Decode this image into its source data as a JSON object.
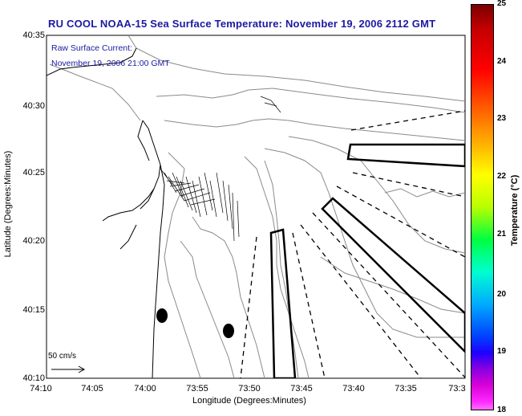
{
  "title": "RU COOL  NOAA-15  Sea Surface Temperature:  November 19, 2006 2112 GMT",
  "subtitle_line1": "Raw Surface Current:",
  "subtitle_line2": "November 19, 2006 21:00 GMT",
  "x_axis": {
    "label": "Longitude (Degrees:Minutes)",
    "ticks": [
      "74:10",
      "74:05",
      "74:00",
      "73:55",
      "73:50",
      "73:45",
      "73:40",
      "73:35",
      "73:3"
    ]
  },
  "y_axis": {
    "label": "Latitude (Degrees:Minutes)",
    "ticks": [
      "40:35",
      "40:30",
      "40:25",
      "40:20",
      "40:15",
      "40:10"
    ]
  },
  "colorbar": {
    "label": "Temperature (°C)",
    "ticks": [
      "25",
      "24",
      "23",
      "22",
      "21",
      "20",
      "19",
      "18"
    ],
    "range": [
      18,
      25
    ]
  },
  "scale_arrow_label": "50 cm/s"
}
